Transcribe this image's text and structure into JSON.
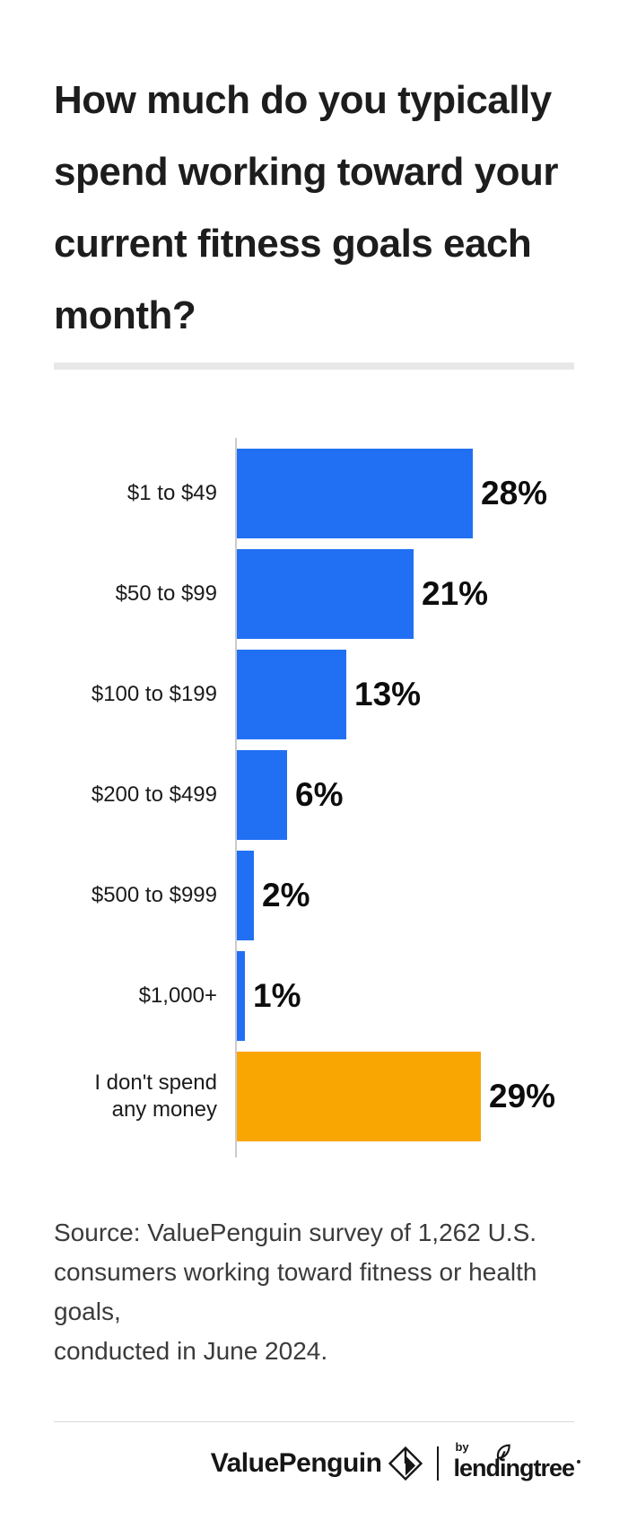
{
  "title": "How much do you typically spend working toward your current fitness goals each month?",
  "title_lines": [
    "How much do you typically",
    "spend working toward your",
    "current fitness goals each",
    "month?"
  ],
  "chart_data": {
    "type": "bar",
    "orientation": "horizontal",
    "title": "How much do you typically spend working toward your current fitness goals each month?",
    "xlabel": "",
    "ylabel": "",
    "xlim": [
      0,
      30
    ],
    "grid": false,
    "value_suffix": "%",
    "categories": [
      "$1 to $49",
      "$50 to $99",
      "$100 to $199",
      "$200 to $499",
      "$500 to $999",
      "$1,000+",
      "I don't spend any money"
    ],
    "values": [
      28,
      21,
      13,
      6,
      2,
      1,
      29
    ],
    "rows": [
      {
        "label": "$1 to $49",
        "value": 28,
        "pct_label": "28%",
        "bar_color": "#2170f4"
      },
      {
        "label": "$50 to $99",
        "value": 21,
        "pct_label": "21%",
        "bar_color": "#2170f4"
      },
      {
        "label": "$100 to $199",
        "value": 13,
        "pct_label": "13%",
        "bar_color": "#2170f4"
      },
      {
        "label": "$200 to $499",
        "value": 6,
        "pct_label": "6%",
        "bar_color": "#2170f4"
      },
      {
        "label": "$500 to $999",
        "value": 2,
        "pct_label": "2%",
        "bar_color": "#2170f4"
      },
      {
        "label": "$1,000+",
        "value": 1,
        "pct_label": "1%",
        "bar_color": "#2170f4"
      },
      {
        "label": "I don't spend any money",
        "value": 29,
        "pct_label": "29%",
        "bar_color": "#f9a602"
      }
    ]
  },
  "source": {
    "lines": [
      "Source: ValuePenguin survey of 1,262 U.S.",
      "consumers working toward fitness or health goals,",
      "conducted in June 2024."
    ]
  },
  "footer": {
    "valuepenguin_label": "ValuePenguin",
    "by_label": "by",
    "lendingtree_label": "lendingtree"
  },
  "colors": {
    "bar_blue": "#2170f4",
    "bar_orange": "#f9a602",
    "axis_gray": "#cbcbcb",
    "divider_gray": "#e8e8e8",
    "text_dark": "#1d1d1d",
    "source_text": "#3b3b3b"
  }
}
